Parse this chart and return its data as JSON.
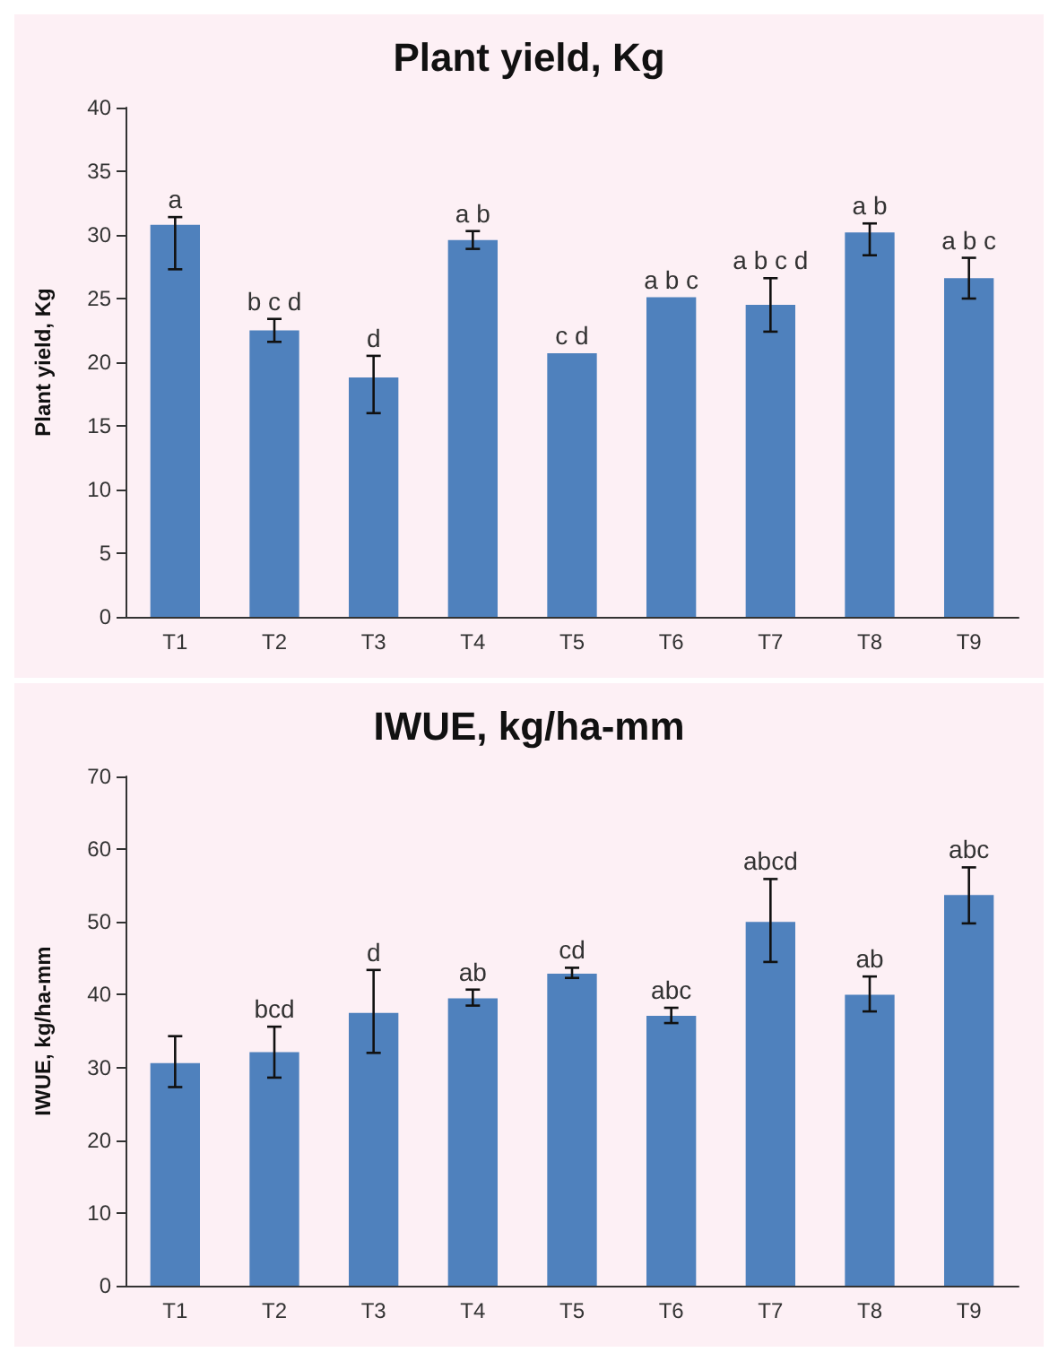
{
  "chart_data": [
    {
      "type": "bar",
      "title": "Plant yield, Kg",
      "ylabel": "Plant yield, Kg",
      "categories": [
        "T1",
        "T2",
        "T3",
        "T4",
        "T5",
        "T6",
        "T7",
        "T8",
        "T9"
      ],
      "series": [
        {
          "color": "#4f81bd",
          "values": [
            30.8,
            22.5,
            18.8,
            29.6,
            20.7,
            25.1,
            24.5,
            30.2,
            26.6
          ],
          "errors": [
            [
              27.3,
              31.4
            ],
            [
              21.6,
              23.4
            ],
            [
              16.0,
              20.5
            ],
            [
              28.9,
              30.3
            ],
            null,
            null,
            [
              22.4,
              26.6
            ],
            [
              28.4,
              30.9
            ],
            [
              25.0,
              28.2
            ]
          ]
        }
      ],
      "ylim": [
        0,
        40
      ],
      "yticks": [
        0,
        5,
        10,
        15,
        20,
        25,
        30,
        35,
        40
      ],
      "annotations": [
        {
          "text": "a",
          "x": "T1",
          "y": 31.4
        },
        {
          "text": "b c d",
          "x": "T2",
          "y": 23.4
        },
        {
          "text": "d",
          "x": "T3",
          "y": 20.5
        },
        {
          "text": "a b",
          "x": "T4",
          "y": 30.3
        },
        {
          "text": "c d",
          "x": "T5",
          "y": 20.7
        },
        {
          "text": "a b c",
          "x": "T6",
          "y": 25.1
        },
        {
          "text": "a b c d",
          "x": "T7",
          "y": 26.6
        },
        {
          "text": "a b",
          "x": "T8",
          "y": 30.9
        },
        {
          "text": "a b c",
          "x": "T9",
          "y": 28.2
        }
      ]
    },
    {
      "type": "bar",
      "title": "IWUE, kg/ha-mm",
      "ylabel": "IWUE, kg/ha-mm",
      "categories": [
        "T1",
        "T2",
        "T3",
        "T4",
        "T5",
        "T6",
        "T7",
        "T8",
        "T9"
      ],
      "series": [
        {
          "color": "#4f81bd",
          "values": [
            30.6,
            32.1,
            37.5,
            39.5,
            42.9,
            37.1,
            50.0,
            40.0,
            53.7
          ],
          "errors": [
            [
              27.3,
              34.3
            ],
            [
              28.6,
              35.6
            ],
            [
              32.0,
              43.4
            ],
            [
              38.5,
              40.7
            ],
            [
              42.3,
              43.7
            ],
            [
              36.1,
              38.2
            ],
            [
              44.5,
              55.9
            ],
            [
              37.7,
              42.5
            ],
            [
              49.8,
              57.5
            ]
          ]
        }
      ],
      "ylim": [
        0,
        70
      ],
      "yticks": [
        0,
        10,
        20,
        30,
        40,
        50,
        60,
        70
      ],
      "annotations": [
        {
          "text": "bcd",
          "x": "T2",
          "y": 35.6
        },
        {
          "text": "d",
          "x": "T3",
          "y": 43.4
        },
        {
          "text": "ab",
          "x": "T4",
          "y": 40.7
        },
        {
          "text": "cd",
          "x": "T5",
          "y": 43.7
        },
        {
          "text": "abc",
          "x": "T6",
          "y": 38.2
        },
        {
          "text": "abcd",
          "x": "T7",
          "y": 55.9
        },
        {
          "text": "ab",
          "x": "T8",
          "y": 42.5
        },
        {
          "text": "abc",
          "x": "T9",
          "y": 57.5
        }
      ]
    }
  ]
}
